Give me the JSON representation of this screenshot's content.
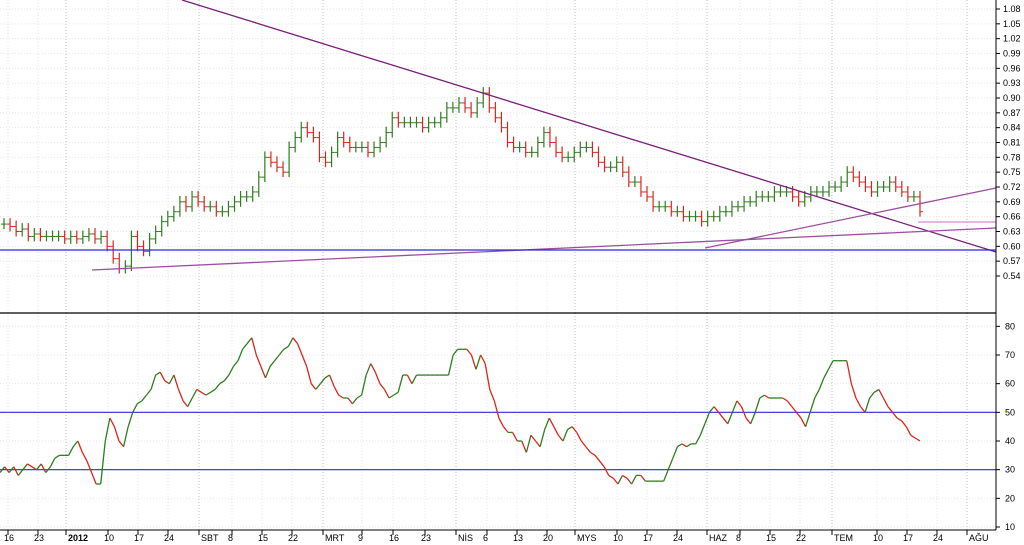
{
  "chart_data": [
    {
      "type": "ohlc",
      "panel": "price",
      "ylim": [
        0.52,
        1.1
      ],
      "y_ticks": [
        "1.08",
        "1.05",
        "1.02",
        "0.99",
        "0.96",
        "0.93",
        "0.90",
        "0.87",
        "0.84",
        "0.81",
        "0.78",
        "0.75",
        "0.72",
        "0.69",
        "0.66",
        "0.63",
        "0.60",
        "0.57",
        "0.54"
      ],
      "grid": true,
      "up_color": "#2e7d1e",
      "down_color": "#d9261c",
      "closes": [
        0.645,
        0.64,
        0.63,
        0.635,
        0.62,
        0.625,
        0.62,
        0.62,
        0.62,
        0.62,
        0.615,
        0.62,
        0.615,
        0.62,
        0.625,
        0.615,
        0.62,
        0.6,
        0.575,
        0.555,
        0.56,
        0.62,
        0.6,
        0.59,
        0.615,
        0.63,
        0.65,
        0.66,
        0.67,
        0.69,
        0.68,
        0.7,
        0.69,
        0.68,
        0.68,
        0.67,
        0.67,
        0.68,
        0.69,
        0.7,
        0.7,
        0.71,
        0.74,
        0.78,
        0.77,
        0.76,
        0.75,
        0.8,
        0.82,
        0.84,
        0.83,
        0.82,
        0.78,
        0.77,
        0.79,
        0.82,
        0.81,
        0.8,
        0.8,
        0.8,
        0.79,
        0.8,
        0.81,
        0.83,
        0.86,
        0.85,
        0.85,
        0.85,
        0.85,
        0.84,
        0.85,
        0.85,
        0.86,
        0.88,
        0.88,
        0.89,
        0.88,
        0.87,
        0.89,
        0.91,
        0.88,
        0.86,
        0.84,
        0.81,
        0.8,
        0.8,
        0.79,
        0.79,
        0.81,
        0.83,
        0.81,
        0.79,
        0.78,
        0.78,
        0.79,
        0.8,
        0.8,
        0.79,
        0.77,
        0.76,
        0.76,
        0.77,
        0.75,
        0.73,
        0.73,
        0.71,
        0.7,
        0.68,
        0.68,
        0.68,
        0.67,
        0.67,
        0.66,
        0.66,
        0.66,
        0.65,
        0.66,
        0.66,
        0.67,
        0.67,
        0.68,
        0.68,
        0.69,
        0.69,
        0.7,
        0.7,
        0.7,
        0.71,
        0.71,
        0.71,
        0.7,
        0.69,
        0.7,
        0.71,
        0.71,
        0.71,
        0.72,
        0.72,
        0.73,
        0.75,
        0.74,
        0.73,
        0.72,
        0.71,
        0.72,
        0.72,
        0.73,
        0.72,
        0.71,
        0.7,
        0.7,
        0.67
      ],
      "trendlines_note": "descending resistance, rising supports, horizontal supports drawn on chart",
      "x_tick_labels": [
        "16",
        "23",
        "2012",
        "10",
        "17",
        "24",
        "SBT",
        "8",
        "15",
        "22",
        "MRT",
        "9",
        "16",
        "23",
        "NİS",
        "6",
        "13",
        "20",
        "MYS",
        "10",
        "17",
        "24",
        "HAZ",
        "8",
        "15",
        "22",
        "TEM",
        "10",
        "17",
        "24",
        "AĞU"
      ]
    },
    {
      "type": "line",
      "panel": "oscillator",
      "ylim": [
        10,
        82
      ],
      "y_ticks": [
        "80",
        "70",
        "60",
        "50",
        "40",
        "30",
        "20",
        "10"
      ],
      "grid": true,
      "reference_lines": [
        50,
        30
      ],
      "up_color": "#2e7d1e",
      "down_color": "#d9261c",
      "values": [
        29,
        31,
        29,
        31,
        28,
        30,
        32,
        31,
        30,
        32,
        29,
        31,
        34,
        35,
        35,
        35,
        38,
        40,
        36,
        33,
        29,
        25,
        25,
        40,
        48,
        45,
        40,
        38,
        45,
        50,
        53,
        54,
        56,
        58,
        63,
        64,
        61,
        60,
        63,
        58,
        54,
        52,
        55,
        58,
        57,
        56,
        57,
        58,
        60,
        61,
        63,
        66,
        68,
        72,
        74,
        76,
        70,
        66,
        62,
        66,
        68,
        70,
        72,
        73,
        76,
        74,
        70,
        66,
        60,
        58,
        60,
        62,
        63,
        59,
        56,
        55,
        55,
        53,
        55,
        56,
        63,
        67,
        64,
        60,
        58,
        55,
        56,
        57,
        63,
        63,
        60,
        63,
        63,
        63,
        63,
        63,
        63,
        63,
        63,
        70,
        72,
        72,
        72,
        70,
        65,
        70,
        67,
        58,
        54,
        48,
        45,
        43,
        43,
        40,
        40,
        36,
        42,
        40,
        38,
        44,
        48,
        45,
        42,
        40,
        44,
        45,
        43,
        40,
        38,
        36,
        35,
        33,
        31,
        28,
        27,
        25,
        28,
        27,
        25,
        28,
        28,
        26,
        26,
        26,
        26,
        26,
        30,
        34,
        38,
        39,
        38,
        39,
        39,
        42,
        46,
        50,
        52,
        50,
        48,
        46,
        50,
        54,
        52,
        48,
        46,
        50,
        55,
        56,
        55,
        55,
        55,
        55,
        54,
        52,
        50,
        48,
        45,
        50,
        55,
        58,
        62,
        65,
        68,
        68,
        68,
        68,
        60,
        55,
        52,
        50,
        55,
        57,
        58,
        55,
        52,
        50,
        48,
        47,
        45,
        42,
        41,
        40
      ],
      "x_tick_labels": [
        "16",
        "23",
        "2012",
        "10",
        "17",
        "24",
        "SBT",
        "8",
        "15",
        "22",
        "MRT",
        "9",
        "16",
        "23",
        "NİS",
        "6",
        "13",
        "20",
        "MYS",
        "10",
        "17",
        "24",
        "HAZ",
        "8",
        "15",
        "22",
        "TEM",
        "10",
        "17",
        "24",
        "AĞU"
      ]
    }
  ]
}
